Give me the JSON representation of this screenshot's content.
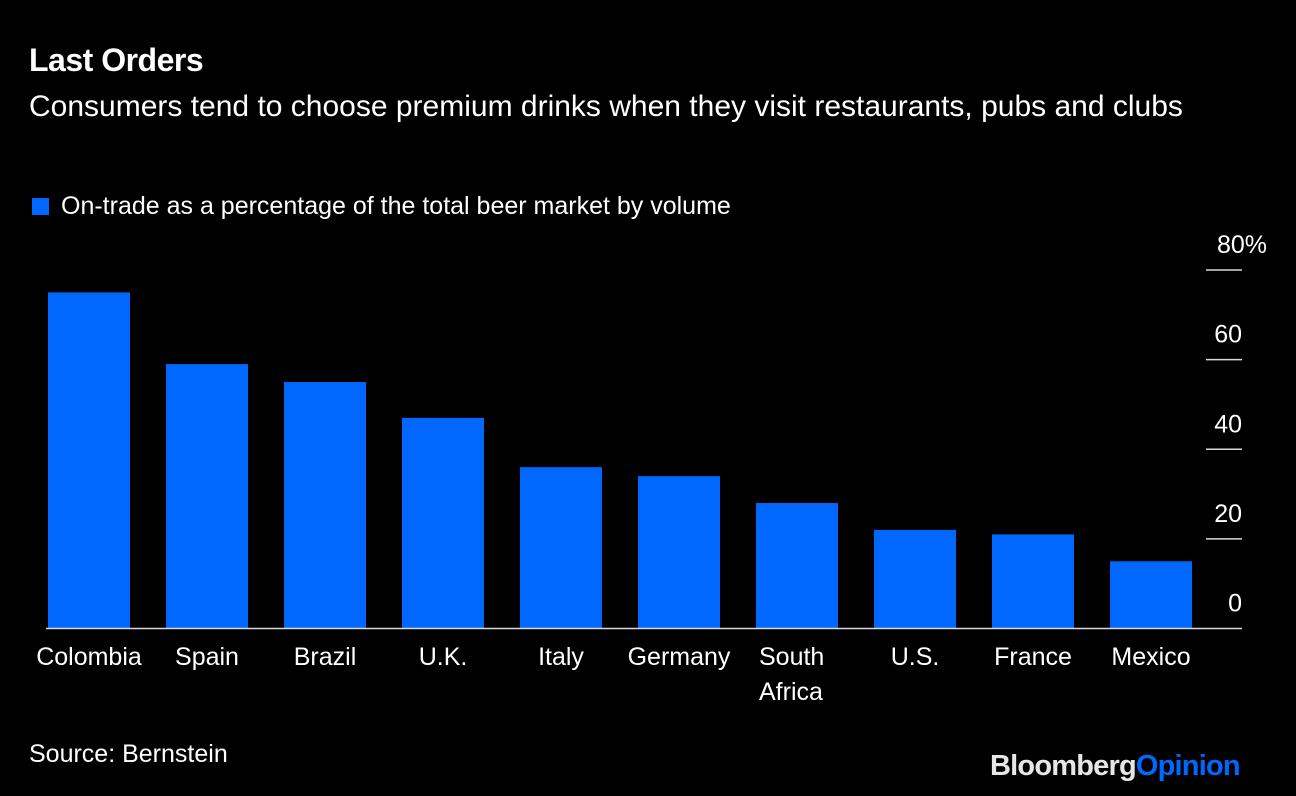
{
  "header": {
    "title": "Last Orders",
    "subtitle": "Consumers tend to choose premium drinks when they visit restaurants, pubs and clubs"
  },
  "legend": {
    "label": "On-trade as a percentage of the total beer market by volume",
    "color": "#0068ff"
  },
  "footer": {
    "source": "Source: Bernstein",
    "brand_primary": "Bloomberg",
    "brand_secondary": "Opinion",
    "brand_secondary_color": "#0068ff"
  },
  "chart_data": {
    "type": "bar",
    "title": "Last Orders",
    "subtitle": "Consumers tend to choose premium drinks when they visit restaurants, pubs and clubs",
    "categories": [
      "Colombia",
      "Spain",
      "Brazil",
      "U.K.",
      "Italy",
      "Germany",
      "South Africa",
      "U.S.",
      "France",
      "Mexico"
    ],
    "category_lines": [
      [
        "Colombia"
      ],
      [
        "Spain"
      ],
      [
        "Brazil"
      ],
      [
        "U.K."
      ],
      [
        "Italy"
      ],
      [
        "Germany"
      ],
      [
        "South",
        "Africa"
      ],
      [
        "U.S."
      ],
      [
        "France"
      ],
      [
        "Mexico"
      ]
    ],
    "series": [
      {
        "name": "On-trade as a percentage of the total beer market by volume",
        "color": "#0068ff",
        "values": [
          75,
          59,
          55,
          47,
          36,
          34,
          28,
          22,
          21,
          15
        ]
      }
    ],
    "xlabel": "",
    "ylabel": "",
    "ylim": [
      0,
      80
    ],
    "yticks": [
      0,
      20,
      40,
      60,
      80
    ],
    "ytick_labels": [
      "0",
      "20",
      "40",
      "60",
      "80%"
    ],
    "y_axis_side": "right",
    "grid": false,
    "legend_position": "top-left",
    "source": "Source: Bernstein"
  }
}
